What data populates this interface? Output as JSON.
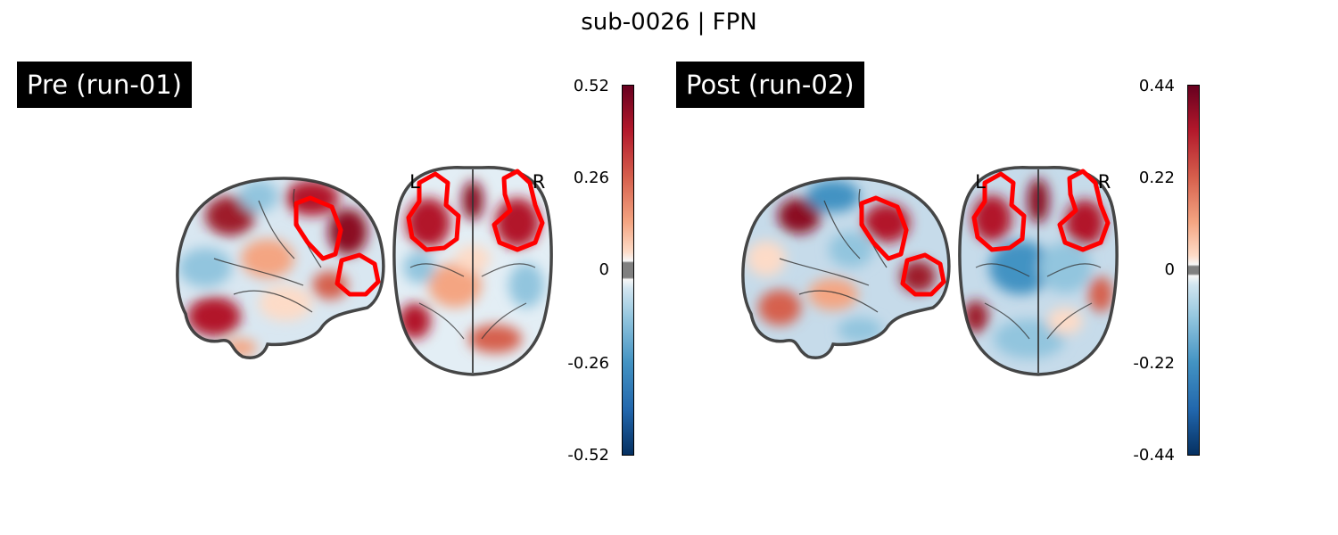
{
  "title": "sub-0026 | FPN",
  "panels": [
    {
      "label": "Pre (run-01)",
      "orient_left": "L",
      "orient_right": "R",
      "colorbar": {
        "ticks": [
          "0.52",
          "0.26",
          "0",
          "-0.26",
          "-0.52"
        ],
        "vmin": -0.52,
        "vmax": 0.52,
        "colormap": "RdBu_r"
      }
    },
    {
      "label": "Post (run-02)",
      "orient_left": "L",
      "orient_right": "R",
      "colorbar": {
        "ticks": [
          "0.44",
          "0.22",
          "0",
          "-0.22",
          "-0.44"
        ],
        "vmin": -0.44,
        "vmax": 0.44,
        "colormap": "RdBu_r"
      }
    }
  ],
  "colors": {
    "positive": "#67001f",
    "negative": "#053061",
    "roi_outline": "#ff0000",
    "background": "#ffffff",
    "brain_outline": "#333333"
  }
}
